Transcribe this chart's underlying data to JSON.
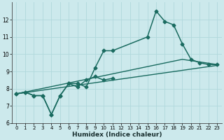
{
  "xlabel": "Humidex (Indice chaleur)",
  "xlim": [
    -0.5,
    23.5
  ],
  "ylim": [
    6,
    13
  ],
  "yticks": [
    6,
    7,
    8,
    9,
    10,
    11,
    12
  ],
  "xticks": [
    0,
    1,
    2,
    3,
    4,
    5,
    6,
    7,
    8,
    9,
    10,
    11,
    12,
    13,
    14,
    15,
    16,
    17,
    18,
    19,
    20,
    21,
    22,
    23
  ],
  "bg_color": "#cce9ec",
  "line_color": "#1a6b60",
  "grid_color": "#b0d8dc",
  "lines": [
    {
      "x": [
        0,
        1,
        2,
        3,
        4,
        5,
        6,
        7,
        8,
        9,
        10,
        11,
        15,
        16,
        17,
        18,
        19,
        20,
        21,
        22,
        23
      ],
      "y": [
        7.7,
        7.8,
        7.6,
        7.6,
        6.5,
        7.6,
        8.3,
        8.3,
        8.1,
        9.2,
        10.2,
        10.2,
        11.0,
        12.5,
        11.9,
        11.7,
        10.6,
        9.7,
        9.5,
        9.4,
        9.4
      ],
      "marker": true,
      "markersize": 2.5,
      "linewidth": 1.1
    },
    {
      "x": [
        0,
        1,
        2,
        3,
        4,
        5,
        6,
        7,
        8,
        9,
        10,
        11
      ],
      "y": [
        7.7,
        7.8,
        7.6,
        7.6,
        6.5,
        7.6,
        8.3,
        8.1,
        8.5,
        8.7,
        8.5,
        8.6
      ],
      "marker": true,
      "markersize": 2.5,
      "linewidth": 1.1
    },
    {
      "x": [
        0,
        23
      ],
      "y": [
        7.7,
        9.35
      ],
      "marker": false,
      "markersize": 0,
      "linewidth": 1.0
    },
    {
      "x": [
        0,
        19,
        23
      ],
      "y": [
        7.7,
        9.7,
        9.4
      ],
      "marker": false,
      "markersize": 0,
      "linewidth": 1.0
    }
  ]
}
